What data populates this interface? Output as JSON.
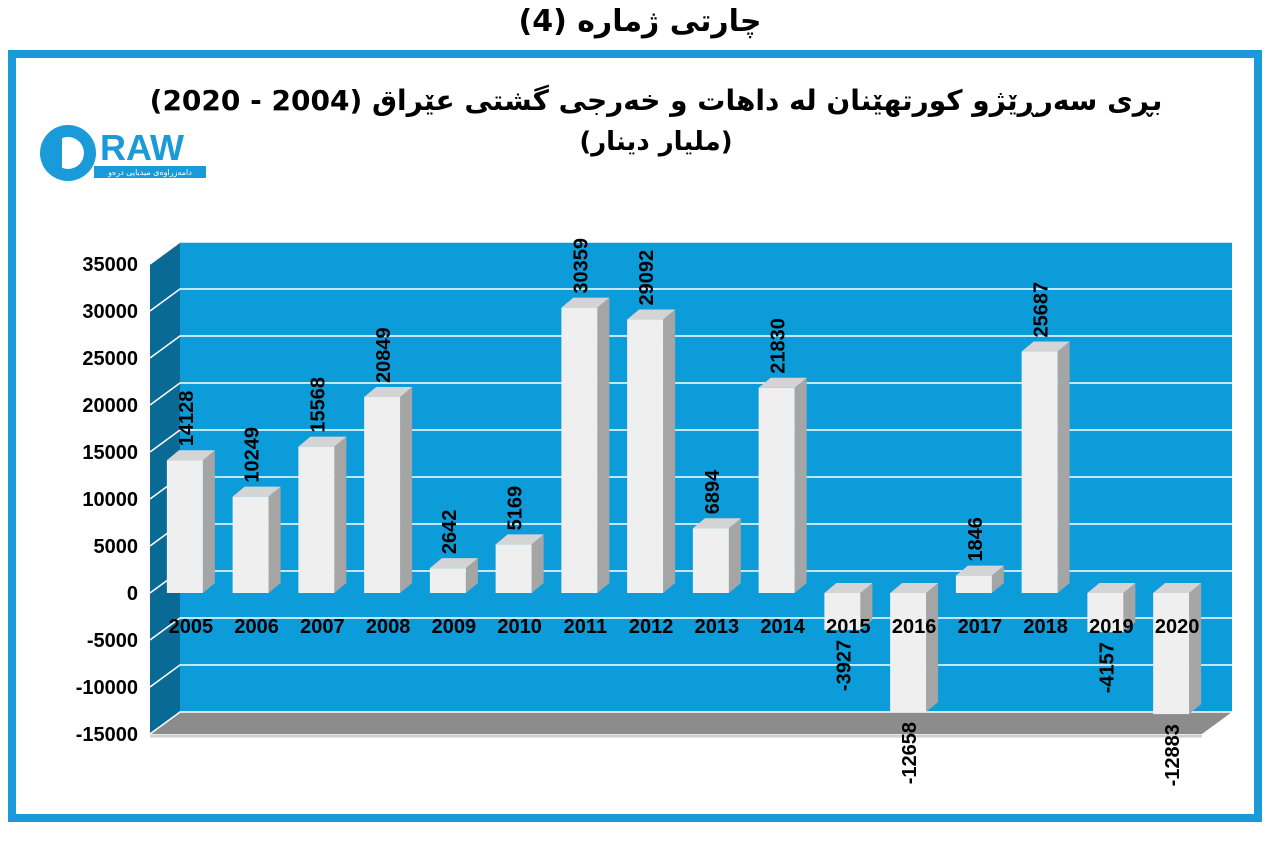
{
  "page_title": "چارتی ژمارە (4)",
  "logo": {
    "text": "DRAW",
    "tagline": "دامەزراوەی میدیایی درەو"
  },
  "colors": {
    "plot_bg": "#0b9cd9",
    "bar_face": "#efefef",
    "bar_side": "#a5a5a5",
    "frame": "#1a9ad8",
    "wall_left": "#0a6a96"
  },
  "chart_data": {
    "type": "bar",
    "title": "بڕی سەرڕێژو كورتهێنان لە داهات و خەرجی گشتی عێراق (2004 - 2020)",
    "subtitle": "(مليار دينار)",
    "categories": [
      "2005",
      "2006",
      "2007",
      "2008",
      "2009",
      "2010",
      "2011",
      "2012",
      "2013",
      "2014",
      "2015",
      "2016",
      "2017",
      "2018",
      "2019",
      "2020"
    ],
    "values": [
      14128,
      10249,
      15568,
      20849,
      2642,
      5169,
      30359,
      29092,
      6894,
      21830,
      -3927,
      -12658,
      1846,
      25687,
      -4157,
      -12883
    ],
    "data_labels": [
      "14128",
      "10249",
      "15568",
      "20849",
      "2642",
      "5169",
      "30359",
      "29092",
      "6894",
      "21830",
      "-3927",
      "-12658",
      "1846",
      "25687",
      "-4157",
      "-12883"
    ],
    "y_ticks": [
      "35000",
      "30000",
      "25000",
      "20000",
      "15000",
      "10000",
      "5000",
      "0",
      "-5000",
      "-10000",
      "-15000"
    ],
    "ylim": [
      -15000,
      35000
    ],
    "grid": true,
    "three_d": true,
    "legend": "none"
  }
}
